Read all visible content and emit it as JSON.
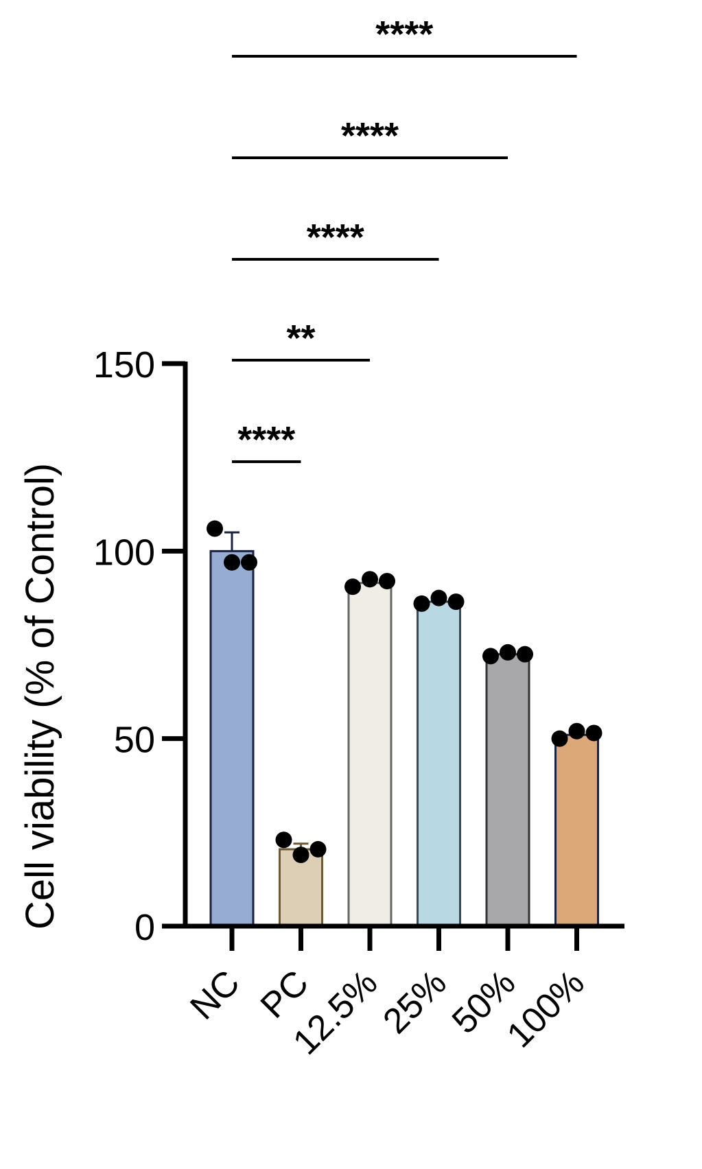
{
  "chart_data": {
    "type": "bar",
    "title": "",
    "xlabel": "",
    "ylabel": "Cell viability (% of Control)",
    "ylim": [
      0,
      150
    ],
    "yticks": [
      0,
      50,
      100,
      150
    ],
    "categories": [
      "NC",
      "PC",
      "12.5%",
      "25%",
      "50%",
      "100%"
    ],
    "values": [
      100,
      20.5,
      91.5,
      86.5,
      72.5,
      51
    ],
    "errors": [
      5,
      1.5,
      0.8,
      0.7,
      0.5,
      0.8
    ],
    "replicates": [
      [
        106,
        97,
        97
      ],
      [
        23,
        19,
        20.5
      ],
      [
        90.5,
        92.5,
        92
      ],
      [
        86,
        87.5,
        86.5
      ],
      [
        72,
        73,
        72.5
      ],
      [
        50,
        52,
        51.5
      ]
    ],
    "colors": [
      "#97acd2",
      "#dccfb6",
      "#f0ece6",
      "#b8d8e3",
      "#a8a8aa",
      "#dca878"
    ],
    "edge_colors": [
      "#1a2040",
      "#6b5a3a",
      "#666666",
      "#3a4a55",
      "#333333",
      "#1a2040"
    ],
    "grid": false,
    "legend": "none",
    "significance": [
      {
        "from": "NC",
        "to": "PC",
        "label": "****"
      },
      {
        "from": "NC",
        "to": "12.5%",
        "label": "**"
      },
      {
        "from": "NC",
        "to": "25%",
        "label": "****"
      },
      {
        "from": "NC",
        "to": "50%",
        "label": "****"
      },
      {
        "from": "NC",
        "to": "100%",
        "label": "****"
      }
    ]
  }
}
